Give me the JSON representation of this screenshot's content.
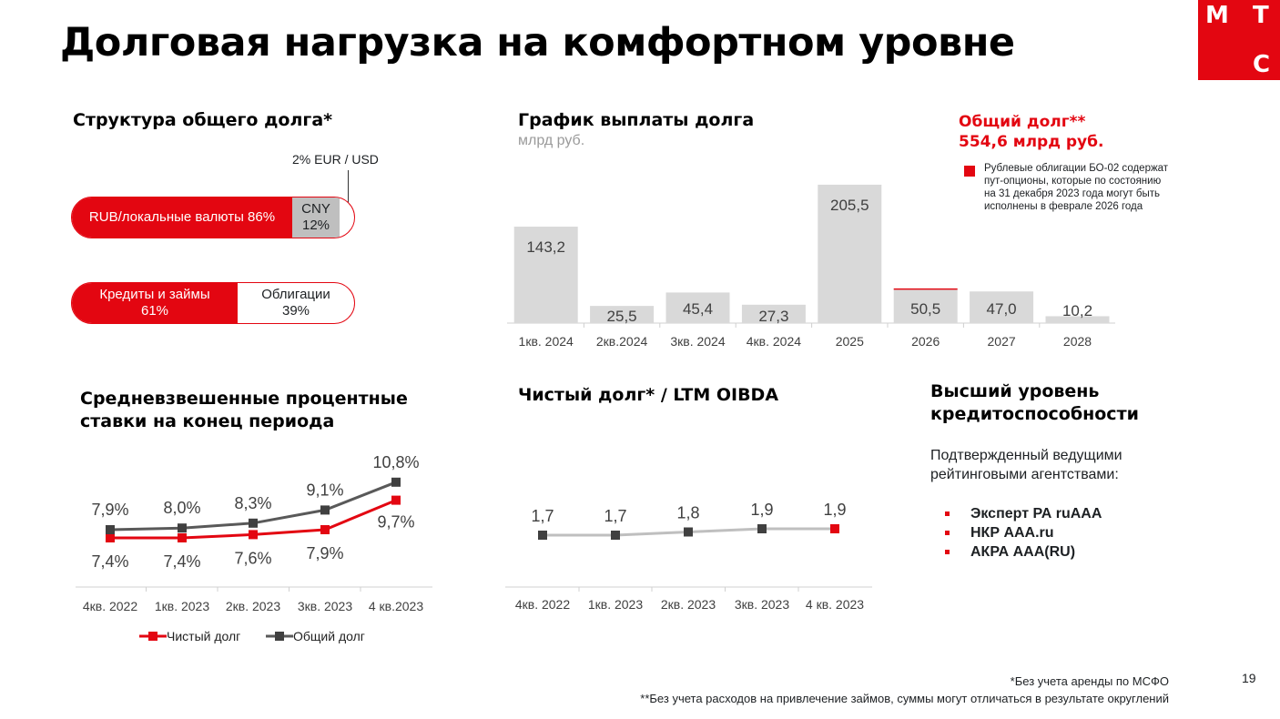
{
  "title": "Долговая нагрузка на комфортном уровне",
  "logo": {
    "l1": "М",
    "l2": "Т",
    "l3": "С"
  },
  "structure": {
    "title": "Структура общего долга*",
    "eur_label": "2% EUR / USD",
    "currency": [
      {
        "label": "RUB/локальные валюты 86%",
        "value": 86
      },
      {
        "label": "CNY",
        "pct": "12%",
        "value": 12
      },
      {
        "value": 2
      }
    ],
    "type": [
      {
        "label": "Кредиты и займы",
        "pct": "61%",
        "value": 61
      },
      {
        "label": "Облигации",
        "pct": "39%",
        "value": 39
      }
    ]
  },
  "total": {
    "line1": "Общий долг**",
    "line2": "554,6 млрд руб.",
    "note": "Рублевые облигации БО-02 содержат пут-опционы, которые по состоянию на 31 декабря 2023 года могут быть исполнены в феврале 2026 года",
    "accent": "#e30611"
  },
  "chart_data": [
    {
      "type": "bar",
      "title": "График выплаты долга",
      "subtitle": "млрд руб.",
      "categories": [
        "1кв. 2024",
        "2кв.2024",
        "3кв. 2024",
        "4кв. 2024",
        "2025",
        "2026",
        "2027",
        "2028"
      ],
      "values": [
        143.2,
        25.5,
        45.4,
        27.3,
        205.5,
        50.5,
        47.0,
        10.2
      ],
      "labels": [
        "143,2",
        "25,5",
        "45,4",
        "27,3",
        "205,5",
        "50,5",
        "47,0",
        "10,2"
      ],
      "highlight_category": "2026",
      "bar_color": "#d9d9d9"
    },
    {
      "type": "line",
      "title": "Средневзвешенные процентные ставки на конец периода",
      "categories": [
        "4кв. 2022",
        "1кв. 2023",
        "2кв. 2023",
        "3кв. 2023",
        "4 кв.2023"
      ],
      "series": [
        {
          "name": "Чистый долг",
          "values": [
            7.4,
            7.4,
            7.6,
            7.9,
            9.7
          ],
          "labels": [
            "7,4%",
            "7,4%",
            "7,6%",
            "7,9%",
            "9,7%"
          ],
          "color": "#e30611"
        },
        {
          "name": "Общий долг",
          "values": [
            7.9,
            8.0,
            8.3,
            9.1,
            10.8
          ],
          "labels": [
            "7,9%",
            "8,0%",
            "8,3%",
            "9,1%",
            "10,8%"
          ],
          "color": "#595959"
        }
      ],
      "legend": "bottom"
    },
    {
      "type": "line",
      "title": "Чистый долг* / LTM OIBDA",
      "categories": [
        "4кв. 2022",
        "1кв. 2023",
        "2кв. 2023",
        "3кв. 2023",
        "4 кв. 2023"
      ],
      "values": [
        1.7,
        1.7,
        1.8,
        1.9,
        1.9
      ],
      "labels": [
        "1,7",
        "1,7",
        "1,8",
        "1,9",
        "1,9"
      ],
      "color": "#bfbfbf"
    }
  ],
  "ratings": {
    "title": "Высший уровень кредитоспособности",
    "desc": "Подтвержденный ведущими рейтинговыми агентствами:",
    "items": [
      "Эксперт РА ruAAA",
      "НКР AAA.ru",
      "АКРА AAA(RU)"
    ]
  },
  "footnotes": {
    "f1": "*Без учета аренды по МСФО",
    "f2": "**Без учета расходов на привлечение займов, суммы могут отличаться в результате округлений"
  },
  "page_number": "19"
}
